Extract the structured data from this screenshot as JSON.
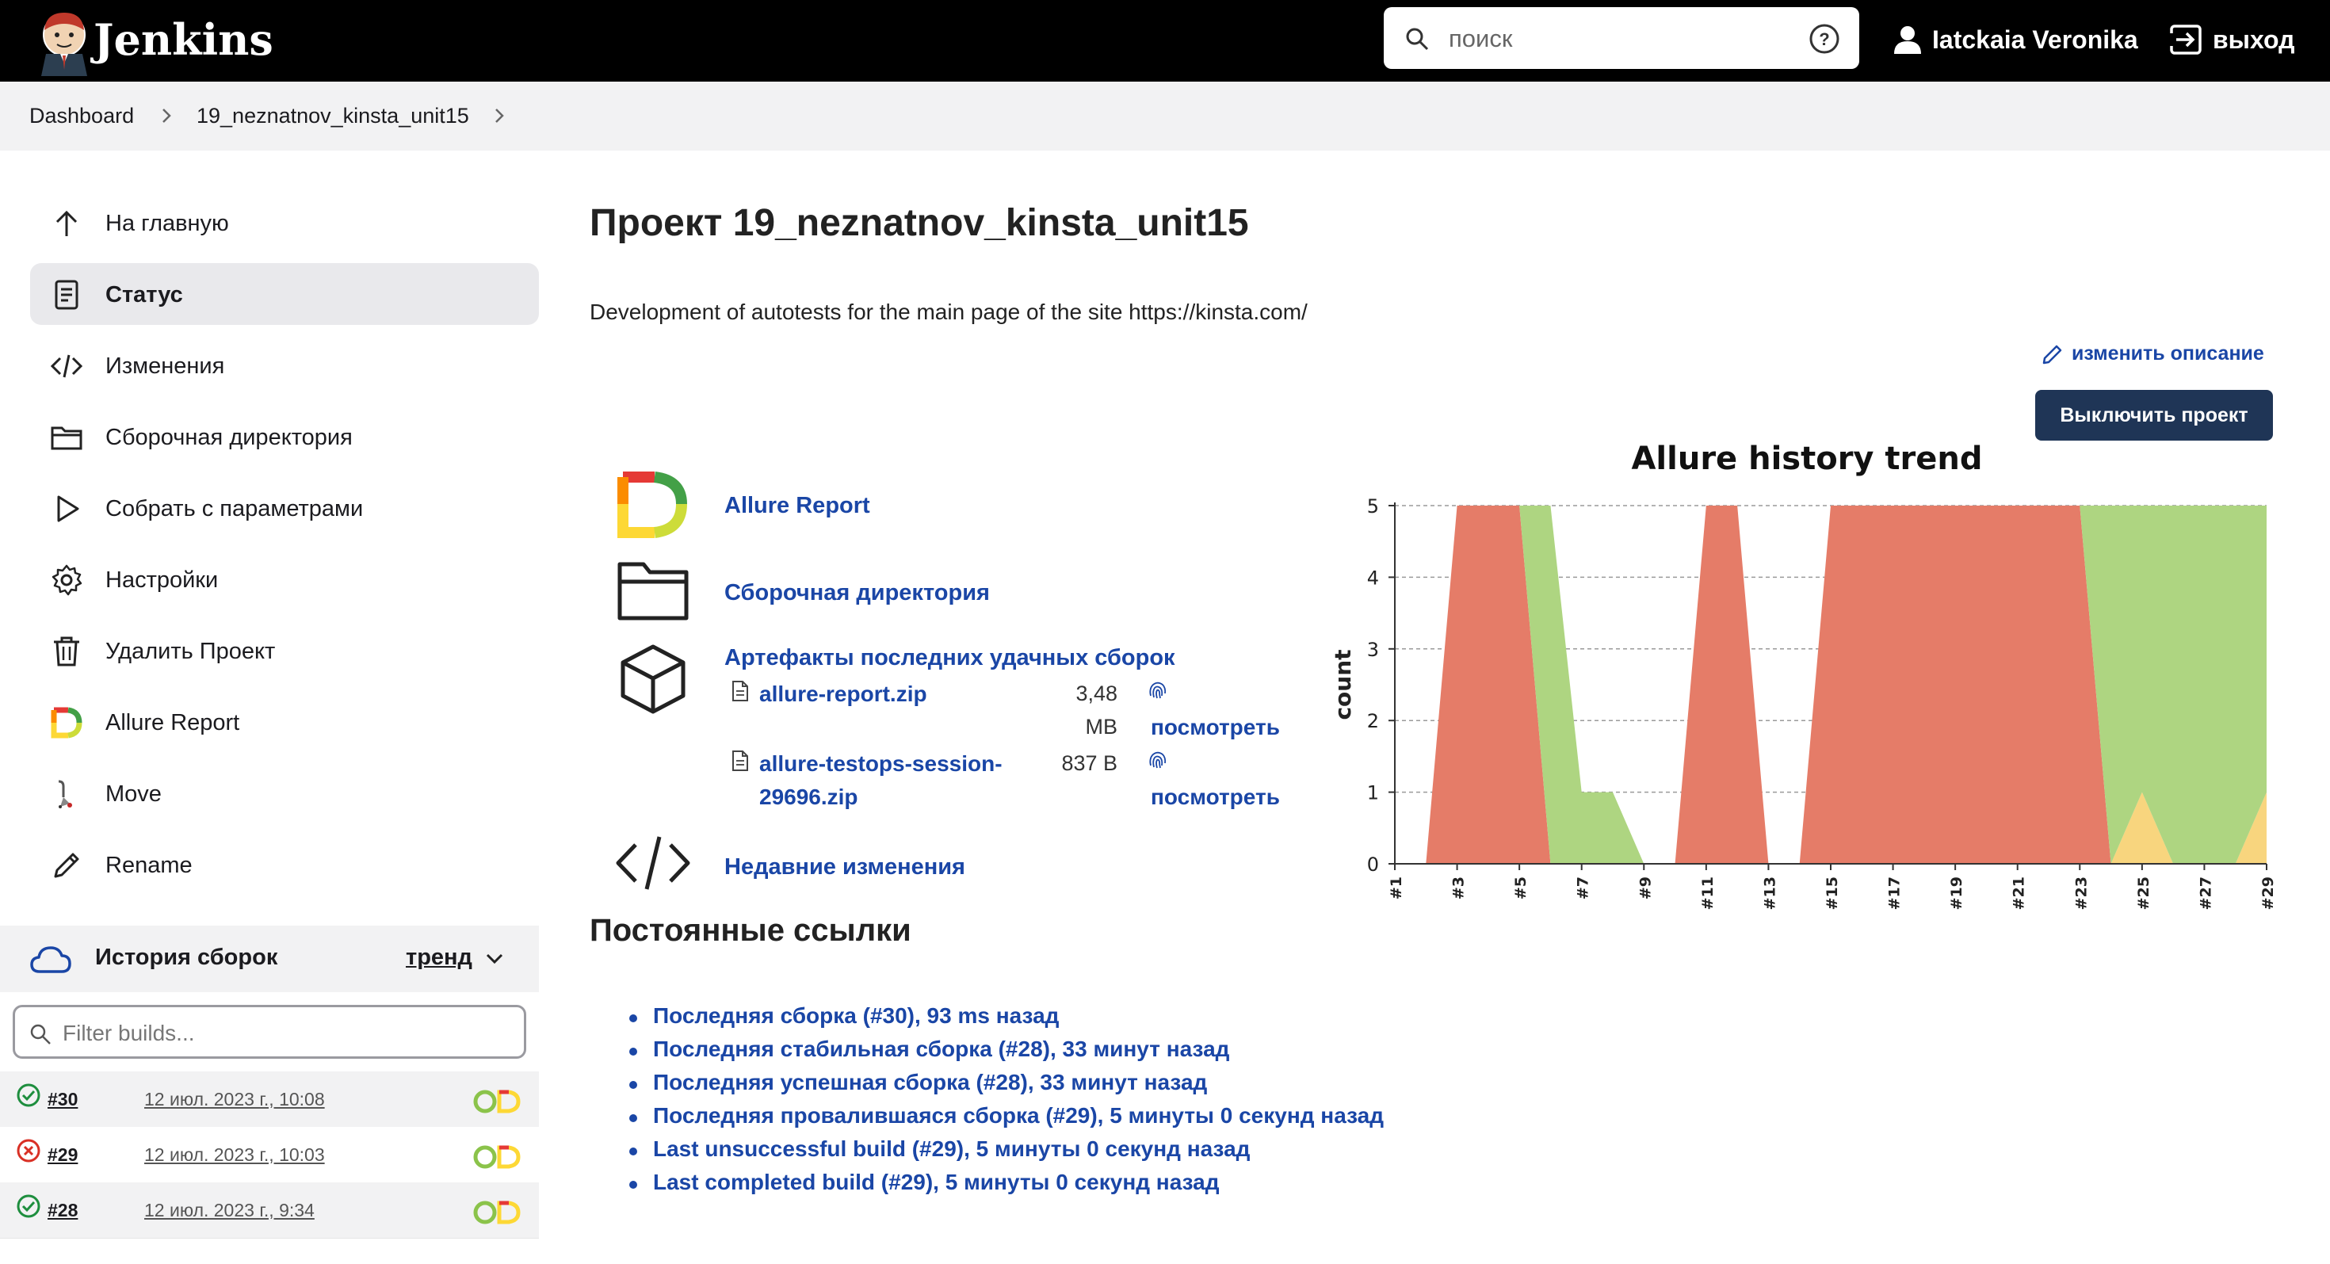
{
  "header": {
    "brand": "Jenkins",
    "search_placeholder": "поиск",
    "user_name": "Iatckaia Veronika",
    "logout_label": "выход"
  },
  "breadcrumb": [
    "Dashboard",
    "19_neznatnov_kinsta_unit15"
  ],
  "sidebar": {
    "items": [
      {
        "label": "На главную",
        "icon": "arrow-up-icon"
      },
      {
        "label": "Статус",
        "icon": "document-icon",
        "active": true
      },
      {
        "label": "Изменения",
        "icon": "code-icon"
      },
      {
        "label": "Сборочная директория",
        "icon": "folder-icon"
      },
      {
        "label": "Собрать с параметрами",
        "icon": "play-icon"
      },
      {
        "label": "Настройки",
        "icon": "gear-icon"
      },
      {
        "label": "Удалить Проект",
        "icon": "trash-icon"
      },
      {
        "label": "Allure Report",
        "icon": "allure-icon"
      },
      {
        "label": "Move",
        "icon": "move-icon"
      },
      {
        "label": "Rename",
        "icon": "pencil-icon"
      }
    ]
  },
  "build_history": {
    "title": "История сборок",
    "trend_label": "тренд",
    "filter_placeholder": "Filter builds...",
    "builds": [
      {
        "number": "#30",
        "date": "12 июл. 2023 г., 10:08",
        "status": "success"
      },
      {
        "number": "#29",
        "date": "12 июл. 2023 г., 10:03",
        "status": "failure"
      },
      {
        "number": "#28",
        "date": "12 июл. 2023 г., 9:34",
        "status": "success"
      }
    ]
  },
  "main": {
    "title": "Проект 19_neznatnov_kinsta_unit15",
    "description": "Development of autotests for the main page of the site https://kinsta.com/",
    "edit_description": "изменить описание",
    "disable_button": "Выключить проект",
    "links": {
      "allure": "Allure Report",
      "workspace": "Сборочная директория",
      "artifacts": "Артефакты последних удачных сборок",
      "changes": "Недавние изменения"
    },
    "artifacts": [
      {
        "name_line1": "allure-report.zip",
        "name_line2": "",
        "size_line1": "3,48",
        "size_line2": "MB",
        "view": "посмотреть"
      },
      {
        "name_line1": "allure-testops-session-",
        "name_line2": "29696.zip",
        "size_line1": "837 B",
        "size_line2": "",
        "view": "посмотреть"
      }
    ],
    "permalinks_title": "Постоянные ссылки",
    "permalinks": [
      "Последняя сборка (#30), 93 ms назад",
      "Последняя стабильная сборка (#28), 33 минут назад",
      "Последняя успешная сборка (#28), 33 минут назад",
      "Последняя провалившаяся сборка (#29), 5 минуты 0 секунд назад",
      "Last unsuccessful build (#29), 5 минуты 0 секунд назад",
      "Last completed build (#29), 5 минуты 0 секунд назад"
    ]
  },
  "chart_data": {
    "type": "area",
    "title": "Allure history trend",
    "xlabel": "",
    "ylabel": "count",
    "ylim": [
      0,
      5
    ],
    "yticks": [
      0,
      1,
      2,
      3,
      4,
      5
    ],
    "grid": true,
    "x": [
      "#1",
      "#2",
      "#3",
      "#4",
      "#5",
      "#6",
      "#7",
      "#8",
      "#9",
      "#10",
      "#11",
      "#12",
      "#13",
      "#14",
      "#15",
      "#16",
      "#17",
      "#18",
      "#19",
      "#20",
      "#21",
      "#22",
      "#23",
      "#24",
      "#25",
      "#26",
      "#27",
      "#28",
      "#29"
    ],
    "x_tick_labels": [
      "#1",
      "#3",
      "#5",
      "#7",
      "#9",
      "#11",
      "#13",
      "#15",
      "#17",
      "#19",
      "#21",
      "#23",
      "#25",
      "#27",
      "#29"
    ],
    "series": [
      {
        "color": "#e57c68",
        "values": [
          0,
          0,
          5,
          5,
          5,
          0,
          0,
          0,
          0,
          0,
          5,
          5,
          0,
          0,
          5,
          5,
          5,
          5,
          5,
          5,
          5,
          5,
          5,
          0,
          0,
          0,
          0,
          0,
          0
        ]
      },
      {
        "color": "#f8d57e",
        "values": [
          0,
          0,
          0,
          0,
          0,
          0,
          0,
          0,
          0,
          0,
          0,
          0,
          0,
          0,
          0,
          0,
          0,
          0,
          0,
          0,
          0,
          0,
          0,
          0,
          1,
          0,
          0,
          0,
          1
        ]
      },
      {
        "color": "#aed581",
        "values": [
          0,
          0,
          0,
          0,
          0,
          5,
          1,
          1,
          0,
          0,
          0,
          0,
          0,
          0,
          0,
          0,
          0,
          0,
          0,
          0,
          0,
          0,
          0,
          5,
          4,
          5,
          5,
          5,
          4
        ]
      }
    ],
    "colors": {
      "failed": "#e57c68",
      "broken": "#f8d57e",
      "passed": "#aed581"
    }
  },
  "colors": {
    "header_bg": "#000000",
    "link": "#1a46a6",
    "button": "#1f3556",
    "success": "#1e8e3e",
    "failure": "#d93025"
  }
}
